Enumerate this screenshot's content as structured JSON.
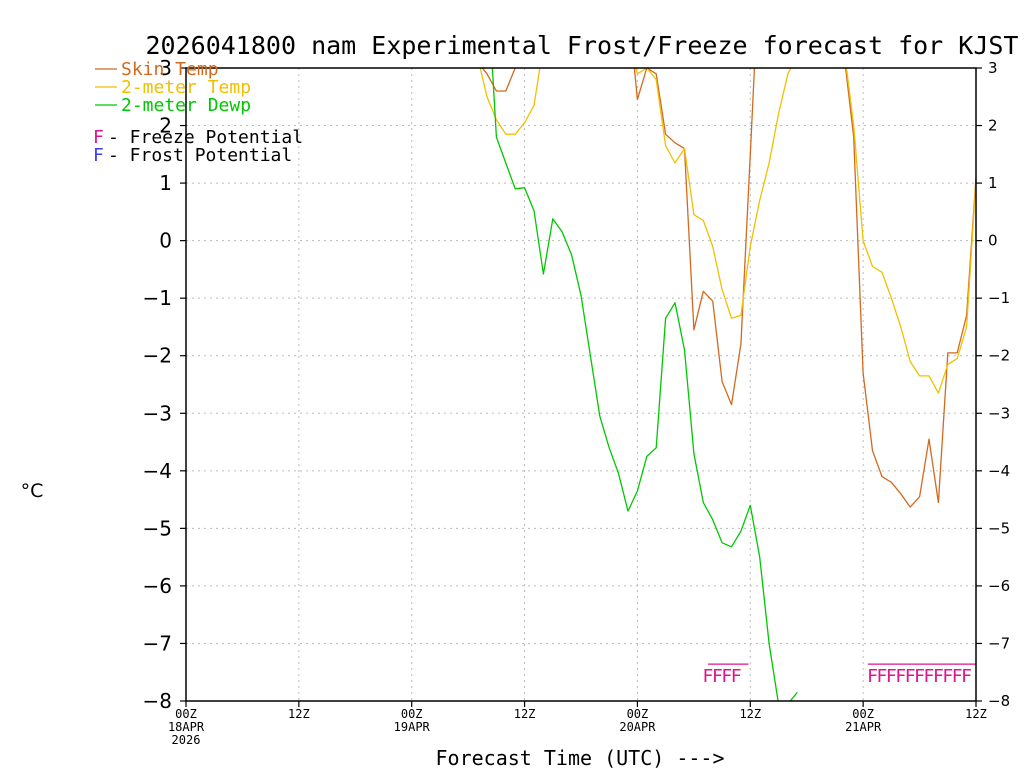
{
  "chart_data": {
    "type": "line",
    "title": "2026041800 nam Experimental Frost/Freeze forecast for KJST",
    "xlabel": "Forecast Time (UTC) --->",
    "ylabel": "°C",
    "ylim": [
      -8,
      3
    ],
    "xlim": [
      0,
      84
    ],
    "yticks": [
      -8,
      -7,
      -6,
      -5,
      -4,
      -3,
      -2,
      -1,
      0,
      1,
      2,
      3
    ],
    "yticklabels": [
      "−8",
      "−7",
      "−6",
      "−5",
      "−4",
      "−3",
      "−2",
      "−1",
      "0",
      "1",
      "2",
      "3"
    ],
    "xticks": [
      {
        "t": 0,
        "label": "00Z",
        "date": "18APR",
        "year": "2026"
      },
      {
        "t": 12,
        "label": "12Z",
        "date": "",
        "year": ""
      },
      {
        "t": 24,
        "label": "00Z",
        "date": "19APR",
        "year": ""
      },
      {
        "t": 36,
        "label": "12Z",
        "date": "",
        "year": ""
      },
      {
        "t": 48,
        "label": "00Z",
        "date": "20APR",
        "year": ""
      },
      {
        "t": 60,
        "label": "12Z",
        "date": "",
        "year": ""
      },
      {
        "t": 72,
        "label": "00Z",
        "date": "21APR",
        "year": ""
      },
      {
        "t": 84,
        "label": "12Z",
        "date": "",
        "year": ""
      }
    ],
    "grid": true,
    "legend": [
      {
        "name": "Skin Temp",
        "color": "#d2691e"
      },
      {
        "name": "2-meter Temp",
        "color": "#f0c000"
      },
      {
        "name": "2-meter Dewp",
        "color": "#00c800"
      }
    ],
    "legend_notes": [
      {
        "letter": "F",
        "text": " - Freeze Potential",
        "color": "#e0148c"
      },
      {
        "letter": "F",
        "text": " - Frost Potential",
        "color": "#3c3cf0"
      }
    ],
    "series": [
      {
        "name": "Skin Temp",
        "color": "#d2691e",
        "t": [
          31,
          31.5,
          32,
          33,
          34,
          35,
          36,
          37,
          38.5,
          47.5,
          48,
          49,
          50,
          51,
          52,
          53,
          54,
          55,
          56,
          57,
          58,
          59,
          60,
          60.5,
          70,
          71,
          72,
          73,
          74,
          75,
          76,
          77,
          78,
          79,
          80,
          81,
          82,
          83,
          84
        ],
        "v": [
          3.2,
          3.0,
          2.9,
          2.6,
          2.6,
          3.0,
          3.3,
          3.4,
          3.2,
          3.3,
          2.45,
          3.0,
          2.9,
          1.85,
          1.7,
          1.6,
          -1.55,
          -0.88,
          -1.05,
          -2.45,
          -2.85,
          -1.8,
          1.5,
          3.2,
          3.2,
          1.8,
          -2.3,
          -3.65,
          -4.1,
          -4.2,
          -4.4,
          -4.63,
          -4.45,
          -3.45,
          -4.55,
          -1.95,
          -1.95,
          -1.3,
          1.1
        ]
      },
      {
        "name": "2-meter Temp",
        "color": "#f0c000",
        "t": [
          31,
          32,
          33,
          34,
          35,
          36,
          37,
          38,
          47.5,
          48,
          49,
          50,
          51,
          52,
          53,
          54,
          55,
          56,
          57,
          58,
          59,
          60,
          61,
          62,
          63,
          64,
          65,
          66,
          70,
          71,
          72,
          73,
          74,
          75,
          76,
          77,
          78,
          79,
          80,
          81,
          82,
          83,
          84
        ],
        "v": [
          3.2,
          2.5,
          2.1,
          1.85,
          1.85,
          2.05,
          2.35,
          3.4,
          3.2,
          2.9,
          3.0,
          2.8,
          1.65,
          1.35,
          1.6,
          0.45,
          0.35,
          -0.1,
          -0.85,
          -1.35,
          -1.3,
          -0.1,
          0.7,
          1.35,
          2.2,
          2.9,
          3.2,
          3.3,
          3.3,
          2.0,
          0.0,
          -0.45,
          -0.55,
          -1.0,
          -1.5,
          -2.1,
          -2.35,
          -2.35,
          -2.65,
          -2.15,
          -2.05,
          -1.5,
          1.05
        ]
      },
      {
        "name": "2-meter Dewp",
        "color": "#00c800",
        "t": [
          32.5,
          33,
          34,
          35,
          36,
          37,
          38,
          39,
          40,
          41,
          42,
          43,
          44,
          45,
          46,
          47,
          48,
          49,
          50,
          51,
          52,
          53,
          54,
          55,
          56,
          57,
          58,
          59,
          60,
          61,
          62,
          63,
          64,
          65
        ],
        "v": [
          3.2,
          1.8,
          1.35,
          0.9,
          0.92,
          0.52,
          -0.58,
          0.38,
          0.15,
          -0.25,
          -0.95,
          -2.0,
          -3.05,
          -3.6,
          -4.05,
          -4.7,
          -4.35,
          -3.75,
          -3.6,
          -1.35,
          -1.08,
          -1.9,
          -3.7,
          -4.55,
          -4.85,
          -5.25,
          -5.32,
          -5.05,
          -4.6,
          -5.5,
          -7.0,
          -8.05,
          -8.05,
          -7.85
        ]
      }
    ],
    "potential_markers": {
      "type": "freeze",
      "letter": "F",
      "color": "#e0148c",
      "level": -7.55,
      "groups": [
        {
          "t": [
            55.5,
            56.5,
            57.5,
            58.5
          ],
          "bar_start": 55.5,
          "bar_end": 59.8
        },
        {
          "t": [
            73,
            74,
            75,
            76,
            77,
            78,
            79,
            80,
            81,
            82,
            83
          ],
          "bar_start": 72.5,
          "bar_end": 84
        }
      ]
    }
  }
}
